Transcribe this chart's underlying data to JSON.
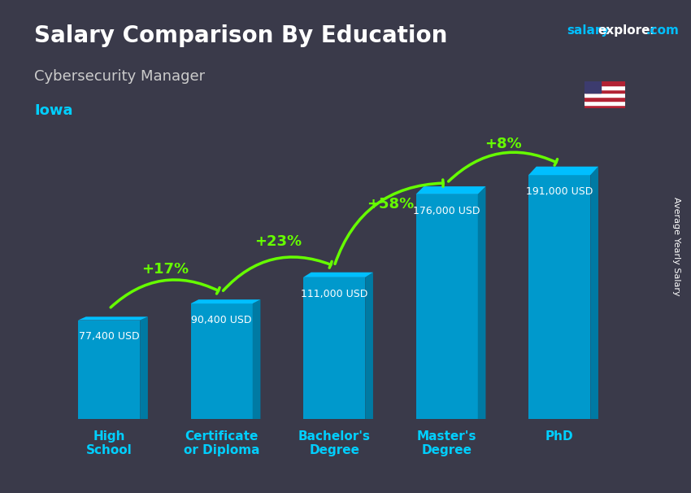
{
  "title": "Salary Comparison By Education",
  "subtitle": "Cybersecurity Manager",
  "location": "Iowa",
  "ylabel": "Average Yearly Salary",
  "website_salary": "salary",
  "website_explorer": "explorer",
  "website_com": ".com",
  "categories": [
    "High\nSchool",
    "Certificate\nor Diploma",
    "Bachelor's\nDegree",
    "Master's\nDegree",
    "PhD"
  ],
  "values": [
    77400,
    90400,
    111000,
    176000,
    191000
  ],
  "value_labels": [
    "77,400 USD",
    "90,400 USD",
    "111,000 USD",
    "176,000 USD",
    "191,000 USD"
  ],
  "pct_labels": [
    "+17%",
    "+23%",
    "+58%",
    "+8%"
  ],
  "bar_color_top": "#00BFFF",
  "bar_color_mid": "#0099CC",
  "bar_color_side": "#007AA3",
  "arrow_color": "#66FF00",
  "pct_color": "#66FF00",
  "title_color": "#FFFFFF",
  "subtitle_color": "#CCCCCC",
  "location_color": "#00CFFF",
  "label_color": "#FFFFFF",
  "bg_color": "#3a3a4a",
  "ylabel_color": "#FFFFFF",
  "site_color1": "#00BFFF",
  "site_color2": "#FFFFFF"
}
